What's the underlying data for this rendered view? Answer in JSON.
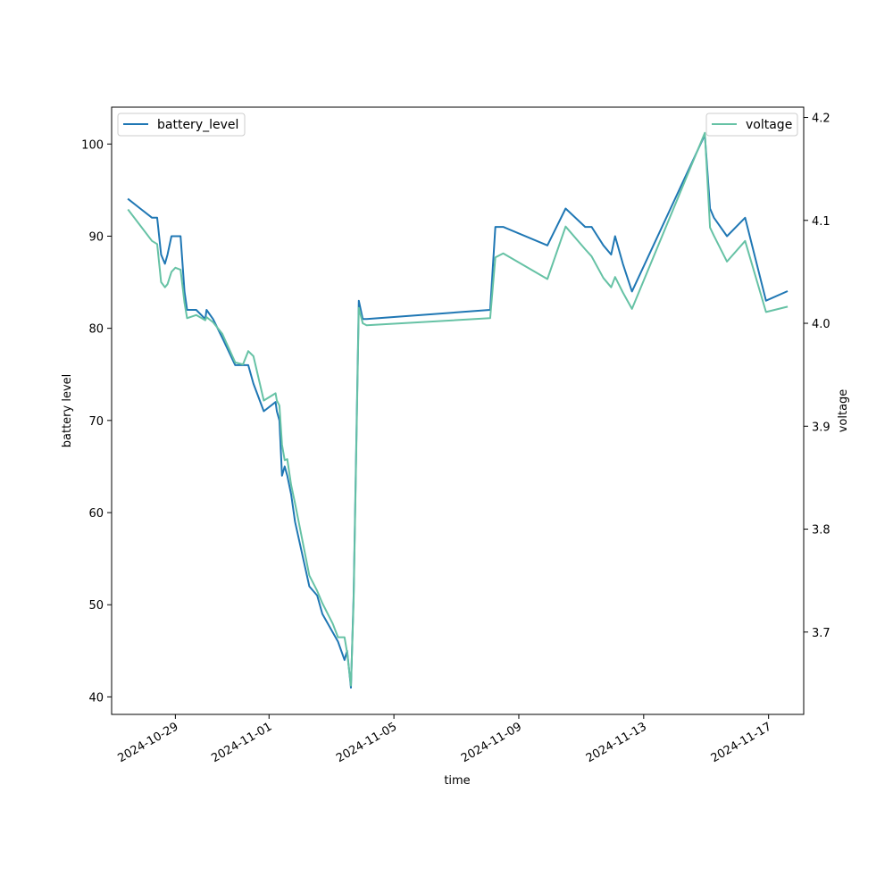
{
  "chart_data": {
    "type": "line",
    "xlabel": "time",
    "ylabel": "battery level",
    "y2label": "voltage",
    "xlim": [
      "2024-10-26T23:00",
      "2024-11-18T03:00"
    ],
    "ylim": [
      38.1,
      104.0
    ],
    "y2lim": [
      3.62,
      4.21
    ],
    "x_ticks": [
      "2024-10-29",
      "2024-11-01",
      "2024-11-05",
      "2024-11-09",
      "2024-11-13",
      "2024-11-17"
    ],
    "y_ticks": [
      40,
      50,
      60,
      70,
      80,
      90,
      100
    ],
    "y2_ticks": [
      3.7,
      3.8,
      3.9,
      4.0,
      4.1,
      4.2
    ],
    "colors": {
      "battery_level": "#1f77b4",
      "voltage": "#66c2a5"
    },
    "legends": [
      {
        "label": "battery_level",
        "placement": "upper-left"
      },
      {
        "label": "voltage",
        "placement": "upper-right"
      }
    ],
    "series": [
      {
        "name": "battery_level",
        "axis": "left",
        "x": [
          "2024-10-27T12:00",
          "2024-10-27T21:00",
          "2024-10-28T06:00",
          "2024-10-28T10:00",
          "2024-10-28T13:00",
          "2024-10-28T16:00",
          "2024-10-28T18:00",
          "2024-10-28T21:00",
          "2024-10-29T00:00",
          "2024-10-29T04:00",
          "2024-10-29T07:00",
          "2024-10-29T09:00",
          "2024-10-29T16:00",
          "2024-10-29T23:00",
          "2024-10-30T00:00",
          "2024-10-30T05:00",
          "2024-10-30T12:00",
          "2024-10-30T22:00",
          "2024-10-31T04:00",
          "2024-10-31T08:00",
          "2024-10-31T12:00",
          "2024-10-31T20:00",
          "2024-11-01T05:00",
          "2024-11-01T06:00",
          "2024-11-01T08:00",
          "2024-11-01T10:00",
          "2024-11-01T12:00",
          "2024-11-01T14:00",
          "2024-11-01T17:00",
          "2024-11-01T20:00",
          "2024-11-02T07:00",
          "2024-11-02T13:00",
          "2024-11-02T17:00",
          "2024-11-03T01:00",
          "2024-11-03T05:00",
          "2024-11-03T10:00",
          "2024-11-03T12:00",
          "2024-11-03T15:00",
          "2024-11-03T17:00",
          "2024-11-03T21:00",
          "2024-11-04T00:00",
          "2024-11-04T03:00",
          "2024-11-08T02:00",
          "2024-11-08T06:00",
          "2024-11-08T12:00",
          "2024-11-09T22:00",
          "2024-11-10T12:00",
          "2024-11-11T03:00",
          "2024-11-11T08:00",
          "2024-11-11T17:00",
          "2024-11-11T23:00",
          "2024-11-12T02:00",
          "2024-11-12T08:00",
          "2024-11-12T15:00",
          "2024-11-14T23:00",
          "2024-11-15T03:00",
          "2024-11-15T06:00",
          "2024-11-15T16:00",
          "2024-11-16T06:00",
          "2024-11-16T22:00",
          "2024-11-17T14:00"
        ],
        "y": [
          94,
          93,
          92,
          92,
          88,
          87,
          88,
          90,
          90,
          90,
          84,
          82,
          82,
          81,
          82,
          81,
          79,
          76,
          76,
          76,
          74,
          71,
          72,
          71,
          70,
          64,
          65,
          64,
          62,
          59,
          52,
          51,
          49,
          47,
          46,
          44,
          45,
          41,
          51,
          83,
          81,
          81,
          82,
          91,
          91,
          89,
          93,
          91,
          91,
          89,
          88,
          90,
          87,
          84,
          101,
          93,
          92,
          90,
          92,
          83,
          84
        ]
      },
      {
        "name": "voltage",
        "axis": "right",
        "x": [
          "2024-10-27T12:00",
          "2024-10-27T21:00",
          "2024-10-28T06:00",
          "2024-10-28T10:00",
          "2024-10-28T13:00",
          "2024-10-28T16:00",
          "2024-10-28T18:00",
          "2024-10-28T21:00",
          "2024-10-29T00:00",
          "2024-10-29T04:00",
          "2024-10-29T07:00",
          "2024-10-29T09:00",
          "2024-10-29T16:00",
          "2024-10-29T23:00",
          "2024-10-30T00:00",
          "2024-10-30T05:00",
          "2024-10-30T12:00",
          "2024-10-30T22:00",
          "2024-10-31T04:00",
          "2024-10-31T08:00",
          "2024-10-31T12:00",
          "2024-10-31T20:00",
          "2024-11-01T05:00",
          "2024-11-01T06:00",
          "2024-11-01T08:00",
          "2024-11-01T10:00",
          "2024-11-01T12:00",
          "2024-11-01T14:00",
          "2024-11-01T17:00",
          "2024-11-01T20:00",
          "2024-11-02T07:00",
          "2024-11-02T13:00",
          "2024-11-02T17:00",
          "2024-11-03T01:00",
          "2024-11-03T05:00",
          "2024-11-03T10:00",
          "2024-11-03T12:00",
          "2024-11-03T15:00",
          "2024-11-03T17:00",
          "2024-11-03T21:00",
          "2024-11-04T00:00",
          "2024-11-04T03:00",
          "2024-11-08T02:00",
          "2024-11-08T06:00",
          "2024-11-08T12:00",
          "2024-11-09T22:00",
          "2024-11-10T12:00",
          "2024-11-11T03:00",
          "2024-11-11T08:00",
          "2024-11-11T17:00",
          "2024-11-11T23:00",
          "2024-11-12T02:00",
          "2024-11-12T08:00",
          "2024-11-12T15:00",
          "2024-11-14T23:00",
          "2024-11-15T03:00",
          "2024-11-15T06:00",
          "2024-11-15T16:00",
          "2024-11-16T06:00",
          "2024-11-16T22:00",
          "2024-11-17T14:00"
        ],
        "y": [
          4.11,
          4.095,
          4.08,
          4.077,
          4.04,
          4.035,
          4.038,
          4.05,
          4.054,
          4.052,
          4.02,
          4.005,
          4.008,
          4.003,
          4.006,
          4.001,
          3.99,
          3.962,
          3.96,
          3.973,
          3.968,
          3.925,
          3.932,
          3.925,
          3.92,
          3.882,
          3.867,
          3.868,
          3.843,
          3.825,
          3.755,
          3.74,
          3.728,
          3.708,
          3.695,
          3.695,
          3.68,
          3.648,
          3.73,
          4.015,
          4.0,
          3.998,
          4.005,
          4.064,
          4.068,
          4.043,
          4.094,
          4.072,
          4.065,
          4.044,
          4.035,
          4.045,
          4.03,
          4.014,
          4.185,
          4.093,
          4.085,
          4.06,
          4.08,
          4.011,
          4.016
        ]
      }
    ]
  }
}
